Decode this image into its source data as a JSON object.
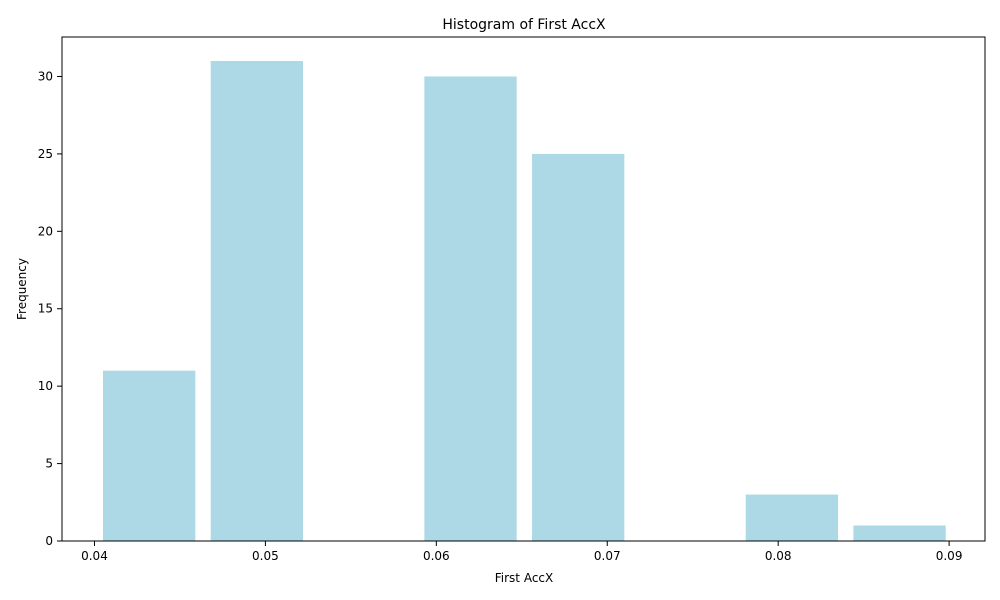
{
  "chart_data": {
    "type": "bar",
    "title": "Histogram of First AccX",
    "xlabel": "First AccX",
    "ylabel": "Frequency",
    "bins": [
      {
        "start": 0.0405,
        "end": 0.0459,
        "count": 11
      },
      {
        "start": 0.0468,
        "end": 0.0522,
        "count": 31
      },
      {
        "start": 0.0593,
        "end": 0.0647,
        "count": 30
      },
      {
        "start": 0.0656,
        "end": 0.071,
        "count": 25
      },
      {
        "start": 0.0781,
        "end": 0.0835,
        "count": 3
      },
      {
        "start": 0.0844,
        "end": 0.0898,
        "count": 1
      }
    ],
    "xlim": [
      0.0381,
      0.0921
    ],
    "ylim": [
      0,
      32.55
    ],
    "xticks": [
      "0.04",
      "0.05",
      "0.06",
      "0.07",
      "0.08",
      "0.09"
    ],
    "xtick_values": [
      0.04,
      0.05,
      0.06,
      0.07,
      0.08,
      0.09
    ],
    "yticks": [
      "0",
      "5",
      "10",
      "15",
      "20",
      "25",
      "30"
    ],
    "ytick_values": [
      0,
      5,
      10,
      15,
      20,
      25,
      30
    ],
    "bar_color": "#add8e6",
    "grid": false,
    "legend": false
  }
}
